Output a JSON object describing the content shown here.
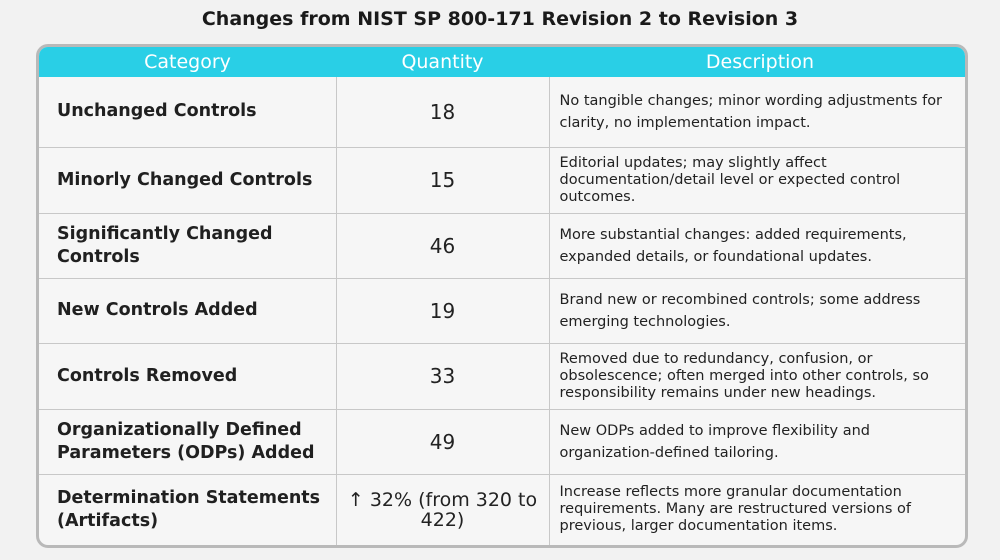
{
  "title": "Changes from NIST SP 800-171 Revision 2 to Revision 3",
  "headers": [
    "Category",
    "Quantity",
    "Description"
  ],
  "rows": [
    {
      "category": "Unchanged Controls",
      "quantity": "18",
      "description": "No tangible changes; minor wording adjustments for clarity, no implementation impact."
    },
    {
      "category": "Minorly Changed Controls",
      "quantity": "15",
      "description": "Editorial updates; may slightly affect documentation/detail level or expected control outcomes."
    },
    {
      "category": "Significantly Changed Controls",
      "quantity": "46",
      "description": "More substantial changes: added requirements, expanded details, or foundational updates."
    },
    {
      "category": "New Controls Added",
      "quantity": "19",
      "description": "Brand new or recombined controls; some address emerging technologies."
    },
    {
      "category": "Controls Removed",
      "quantity": "33",
      "description": "Removed due to redundancy, confusion, or obsolescence; often merged into other controls, so responsibility remains under new headings."
    },
    {
      "category": "Organizationally Defined Parameters (ODPs) Added",
      "quantity": "49",
      "description": "New ODPs added to improve flexibility and organization-defined tailoring."
    },
    {
      "category": "Determination Statements (Artifacts)",
      "quantity": "↑ 32% (from 320 to 422)",
      "description": "Increase reflects more granular documentation requirements. Many are restructured versions of previous, larger documentation items."
    }
  ]
}
